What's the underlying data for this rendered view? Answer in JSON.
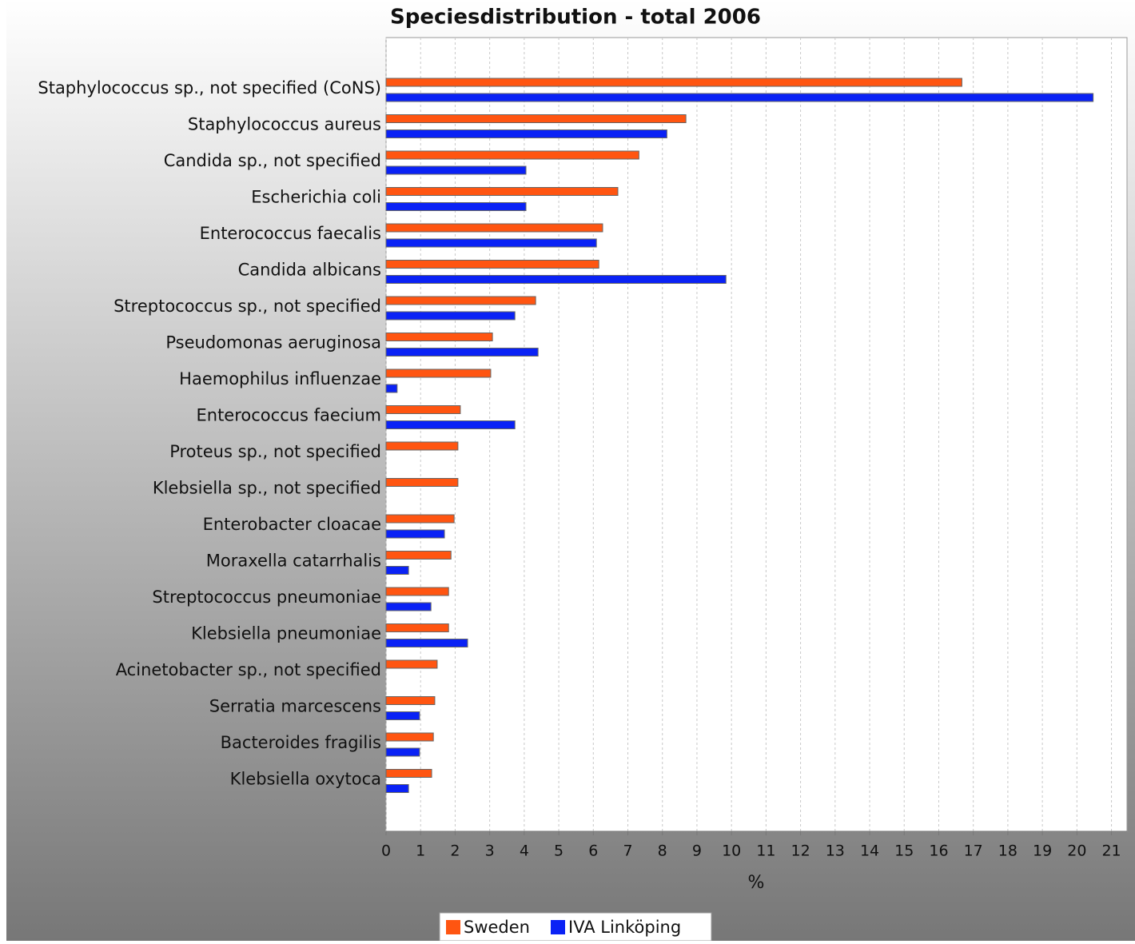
{
  "chart_data": {
    "type": "barh",
    "title": "Speciesdistribution - total 2006",
    "xlabel": "%",
    "categories": [
      "Staphylococcus sp., not specified (CoNS)",
      "Staphylococcus aureus",
      "Candida sp., not specified",
      "Escherichia coli",
      "Enterococcus faecalis",
      "Candida albicans",
      "Streptococcus sp., not specified",
      "Pseudomonas aeruginosa",
      "Haemophilus influenzae",
      "Enterococcus faecium",
      "Proteus sp., not specified",
      "Klebsiella sp., not specified",
      "Enterobacter cloacae",
      "Moraxella catarrhalis",
      "Streptococcus pneumoniae",
      "Klebsiella pneumoniae",
      "Acinetobacter sp., not specified",
      "Serratia marcescens",
      "Bacteroides fragilis",
      "Klebsiella oxytoca"
    ],
    "series": [
      {
        "name": "Sweden",
        "color": "#ff5511",
        "values": [
          16.67,
          8.68,
          7.32,
          6.71,
          6.27,
          6.16,
          4.33,
          3.08,
          3.03,
          2.15,
          2.08,
          2.08,
          1.97,
          1.88,
          1.81,
          1.81,
          1.48,
          1.41,
          1.37,
          1.32
        ]
      },
      {
        "name": "IVA Linköping",
        "color": "#0a22f5",
        "values": [
          20.47,
          8.13,
          4.05,
          4.05,
          6.09,
          9.84,
          3.73,
          4.4,
          0.32,
          3.73,
          0,
          0,
          1.69,
          0.65,
          1.3,
          2.36,
          0,
          0.97,
          0.97,
          0.65
        ]
      }
    ],
    "xlim": [
      0,
      21.45
    ],
    "xticks": [
      0,
      1,
      2,
      3,
      4,
      5,
      6,
      7,
      8,
      9,
      10,
      11,
      12,
      13,
      14,
      15,
      16,
      17,
      18,
      19,
      20,
      21
    ],
    "grid": true,
    "legend": "bottom"
  }
}
